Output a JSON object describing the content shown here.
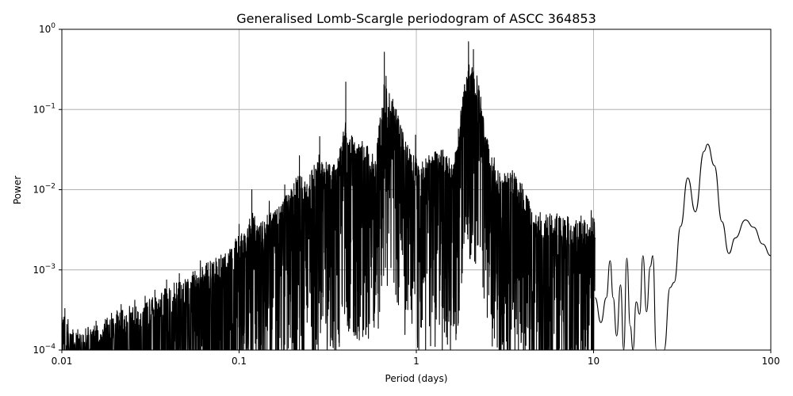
{
  "chart_data": {
    "type": "line",
    "title": "Generalised Lomb-Scargle periodogram of ASCC 364853",
    "xlabel": "Period (days)",
    "ylabel": "Power",
    "xscale": "log",
    "yscale": "log",
    "xlim": [
      0.01,
      100
    ],
    "ylim": [
      0.0001,
      1
    ],
    "grid": true,
    "x_ticks": [
      {
        "value": 0.01,
        "label": "0.01"
      },
      {
        "value": 0.1,
        "label": "0.1"
      },
      {
        "value": 1,
        "label": "1"
      },
      {
        "value": 10,
        "label": "10"
      },
      {
        "value": 100,
        "label": "100"
      }
    ],
    "y_ticks": [
      {
        "value": 0.0001,
        "base": "10",
        "exp": "−4"
      },
      {
        "value": 0.001,
        "base": "10",
        "exp": "−3"
      },
      {
        "value": 0.01,
        "base": "10",
        "exp": "−2"
      },
      {
        "value": 0.1,
        "base": "10",
        "exp": "−1"
      },
      {
        "value": 1,
        "base": "10",
        "exp": "0"
      }
    ],
    "color": "#000000",
    "peaks": [
      {
        "period": 0.0104,
        "power": 0.00033
      },
      {
        "period": 0.0123,
        "power": 0.00018
      },
      {
        "period": 0.0156,
        "power": 0.00023
      },
      {
        "period": 0.0216,
        "power": 0.00037
      },
      {
        "period": 0.0258,
        "power": 0.00042
      },
      {
        "period": 0.0295,
        "power": 0.00047
      },
      {
        "period": 0.0335,
        "power": 0.00056
      },
      {
        "period": 0.039,
        "power": 0.00075
      },
      {
        "period": 0.046,
        "power": 0.0009
      },
      {
        "period": 0.0605,
        "power": 0.0013
      },
      {
        "period": 0.074,
        "power": 0.0014
      },
      {
        "period": 0.09,
        "power": 0.0018
      },
      {
        "period": 0.1,
        "power": 0.0037
      },
      {
        "period": 0.107,
        "power": 0.0028
      },
      {
        "period": 0.118,
        "power": 0.01
      },
      {
        "period": 0.131,
        "power": 0.0035
      },
      {
        "period": 0.148,
        "power": 0.0072
      },
      {
        "period": 0.168,
        "power": 0.0061
      },
      {
        "period": 0.181,
        "power": 0.0115
      },
      {
        "period": 0.219,
        "power": 0.0265
      },
      {
        "period": 0.235,
        "power": 0.0125
      },
      {
        "period": 0.285,
        "power": 0.046
      },
      {
        "period": 0.31,
        "power": 0.022
      },
      {
        "period": 0.352,
        "power": 0.0155
      },
      {
        "period": 0.4,
        "power": 0.22
      },
      {
        "period": 0.41,
        "power": 0.038
      },
      {
        "period": 0.495,
        "power": 0.04
      },
      {
        "period": 0.585,
        "power": 0.014
      },
      {
        "period": 0.66,
        "power": 0.52
      },
      {
        "period": 0.675,
        "power": 0.26
      },
      {
        "period": 0.99,
        "power": 0.048
      },
      {
        "period": 1.02,
        "power": 0.015
      },
      {
        "period": 1.61,
        "power": 0.018
      },
      {
        "period": 1.97,
        "power": 0.7
      },
      {
        "period": 2.1,
        "power": 0.56
      },
      {
        "period": 2.75,
        "power": 0.025
      },
      {
        "period": 2.95,
        "power": 0.016
      },
      {
        "period": 5.0,
        "power": 0.0052
      },
      {
        "period": 8.5,
        "power": 0.0047
      },
      {
        "period": 9.7,
        "power": 0.0055
      }
    ],
    "smooth_section": [
      [
        10.2,
        0.00045
      ],
      [
        11.0,
        0.00022
      ],
      [
        11.8,
        0.00045
      ],
      [
        12.4,
        0.0013
      ],
      [
        12.9,
        0.00045
      ],
      [
        13.5,
        0.00015
      ],
      [
        14.2,
        0.00065
      ],
      [
        14.8,
        0.0001
      ],
      [
        15.4,
        0.0014
      ],
      [
        16.1,
        0.0002
      ],
      [
        16.7,
        0.0001
      ],
      [
        17.4,
        0.0004
      ],
      [
        18.2,
        0.00028
      ],
      [
        19.0,
        0.0015
      ],
      [
        19.9,
        0.0003
      ],
      [
        20.9,
        0.0011
      ],
      [
        21.6,
        0.0015
      ],
      [
        22.6,
        0.0001
      ],
      [
        25.0,
        0.0001
      ],
      [
        27.0,
        0.0006
      ],
      [
        28.5,
        0.0007
      ],
      [
        31.0,
        0.0035
      ],
      [
        34.0,
        0.014
      ],
      [
        37.5,
        0.0053
      ],
      [
        42.0,
        0.03
      ],
      [
        44.0,
        0.037
      ],
      [
        48.0,
        0.02
      ],
      [
        53.0,
        0.004
      ],
      [
        58.0,
        0.0016
      ],
      [
        63.0,
        0.0025
      ],
      [
        72.0,
        0.0042
      ],
      [
        80.0,
        0.0034
      ],
      [
        90.0,
        0.0021
      ],
      [
        100.0,
        0.0015
      ]
    ]
  }
}
